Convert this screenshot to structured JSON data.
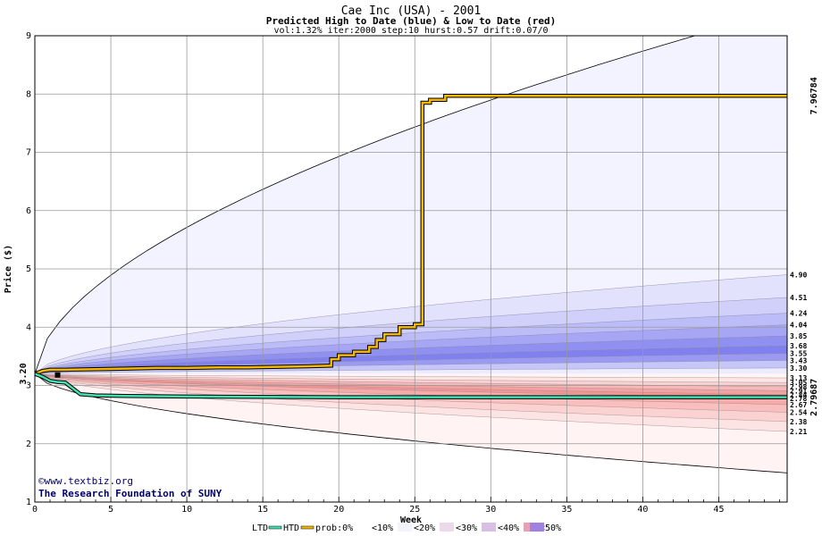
{
  "chart_data": {
    "type": "area",
    "title": "Cae Inc (USA) - 2001",
    "subtitle": "Predicted High to Date (blue) &  Low to Date (red)",
    "params": "vol:1.32% iter:2000 step:10 hurst:0.57 drift:0.07/0",
    "xlabel": "Week",
    "ylabel": "Price ($)",
    "xlim": [
      0,
      49.5
    ],
    "ylim": [
      1,
      9
    ],
    "x_ticks": [
      0,
      5,
      10,
      15,
      20,
      25,
      30,
      35,
      40,
      45
    ],
    "y_ticks": [
      1,
      2,
      3,
      4,
      5,
      6,
      7,
      8,
      9
    ],
    "grid": true,
    "start_price": 3.2,
    "start_label": "3.20",
    "right_labels": [
      "4.90",
      "4.51",
      "4.24",
      "4.04",
      "3.85",
      "3.68",
      "3.55",
      "3.43",
      "3.30",
      "3.13",
      "3.05",
      "2.98",
      "2.91",
      "2.84",
      "2.78",
      "2.67",
      "2.54",
      "2.38",
      "2.21"
    ],
    "high_bands_end": [
      9.45,
      4.9,
      4.51,
      4.24,
      4.04,
      3.85,
      3.68,
      3.55,
      3.43,
      3.3
    ],
    "low_bands_end": [
      1.5,
      2.21,
      2.38,
      2.54,
      2.67,
      2.78,
      2.84,
      2.91,
      2.98,
      3.05,
      3.13
    ],
    "htd_final": "7.96784",
    "ltd_final": "2.79687",
    "series": [
      {
        "name": "HTD",
        "x": [
          0,
          0.5,
          1,
          2,
          4,
          6,
          8,
          10,
          12,
          14,
          16,
          18,
          19.5,
          19.5,
          20,
          20,
          21,
          21,
          22,
          22,
          22.5,
          22.5,
          23,
          23,
          24,
          24,
          25,
          25,
          25.5,
          25.5,
          26,
          26,
          27,
          27,
          49.5
        ],
        "values": [
          3.2,
          3.25,
          3.27,
          3.27,
          3.28,
          3.29,
          3.3,
          3.3,
          3.31,
          3.31,
          3.32,
          3.33,
          3.34,
          3.45,
          3.45,
          3.52,
          3.52,
          3.58,
          3.58,
          3.66,
          3.66,
          3.78,
          3.78,
          3.88,
          3.88,
          4.0,
          4.0,
          4.05,
          4.05,
          7.85,
          7.85,
          7.9,
          7.9,
          7.97,
          7.97
        ]
      },
      {
        "name": "LTD",
        "x": [
          0,
          0.5,
          1,
          1.5,
          2,
          2.5,
          3,
          4,
          6,
          10,
          20,
          30,
          40,
          49.5
        ],
        "values": [
          3.2,
          3.15,
          3.08,
          3.06,
          3.05,
          2.95,
          2.85,
          2.83,
          2.82,
          2.81,
          2.8,
          2.8,
          2.8,
          2.8
        ]
      }
    ],
    "legend": {
      "placement": "bottom",
      "ltd": "LTD",
      "htd": "HTD",
      "prob": "prob:0%",
      "bins": [
        "<10%",
        "<20%",
        "<30%",
        "<40%",
        "<50%"
      ]
    },
    "credits": [
      "©www.textbiz.org",
      "The Research Foundation of SUNY"
    ],
    "colors": {
      "htd": "#f5b800",
      "ltd": "#40e0b0",
      "htd_value": "#8b7500",
      "ltd_value": "#1a8a6a",
      "high_shades": [
        "#f3f3ff",
        "#e2e2fd",
        "#d0d0fb",
        "#bcbcf9",
        "#a6a6f5",
        "#9090f1",
        "#8080ee",
        "#9a9af2",
        "#c6c6f8",
        "#ececfe"
      ],
      "low_shades": [
        "#fff3f3",
        "#fde4e4",
        "#fbd2d2",
        "#f9bfbf",
        "#f6aaaa",
        "#f39595",
        "#f3a2a2",
        "#f6b8b8",
        "#fad0d0",
        "#fde6e6",
        "#fff5f5"
      ],
      "legend_swatches": [
        "#ffffff",
        "#f3f3ff",
        "#ecd9ec",
        "#d8c0e4",
        "#e8a0b4",
        "#a080e0"
      ]
    }
  }
}
